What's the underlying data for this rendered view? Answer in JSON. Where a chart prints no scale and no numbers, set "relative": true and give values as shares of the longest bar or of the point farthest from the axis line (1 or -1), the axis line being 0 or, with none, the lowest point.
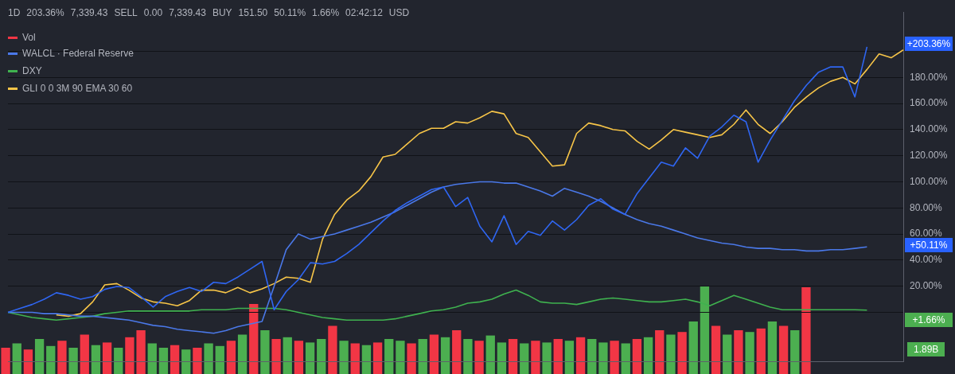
{
  "chart_data": [
    {
      "type": "line",
      "categories": [
        null,
        null,
        null,
        null,
        null,
        null,
        null,
        null,
        null,
        null,
        null,
        null,
        null,
        null,
        null,
        null,
        null,
        null,
        null,
        null,
        null,
        null,
        null,
        null,
        null,
        null,
        null,
        null,
        null,
        null,
        null,
        null,
        null,
        null,
        null,
        null,
        null,
        null,
        null,
        null,
        null,
        null,
        null,
        null,
        null,
        null,
        null,
        null,
        null,
        null,
        null,
        null,
        null,
        null,
        null,
        null,
        null,
        null,
        null,
        null,
        null,
        null,
        null,
        null,
        null,
        null,
        null,
        null,
        null,
        null,
        null,
        null,
        null,
        null,
        null
      ],
      "series": [
        {
          "color": "#2f66f2",
          "values": [
            0,
            3,
            6,
            10,
            15,
            13,
            10,
            12,
            17.6,
            19.8,
            19,
            12,
            4,
            12,
            16,
            19,
            16,
            23,
            22,
            27,
            33,
            39,
            2,
            16,
            25,
            38,
            37,
            39,
            45,
            52,
            61,
            70,
            78,
            84,
            89,
            94,
            96,
            81,
            88,
            66,
            54,
            74,
            52,
            62,
            59,
            70,
            63,
            71,
            82,
            87,
            79,
            75,
            91,
            103,
            115,
            112,
            126,
            118,
            135,
            142,
            151,
            146,
            115,
            132,
            147,
            162,
            174,
            184,
            188,
            188,
            165,
            203.36,
            null,
            null,
            null
          ]
        },
        {
          "name": "WALCL · Federal Reserve",
          "color": "#4a78e8",
          "values": [
            0,
            0,
            0,
            -1,
            -1,
            -2,
            -3,
            -3,
            -4,
            -5,
            -6,
            -8,
            -10,
            -11,
            -13,
            -14,
            -15,
            -16,
            -14,
            -11,
            -9,
            -7,
            20,
            48,
            60,
            56,
            58,
            60,
            63,
            66,
            69,
            73,
            77,
            82,
            87,
            92,
            96,
            98,
            99,
            100,
            100,
            99,
            99,
            96,
            93,
            89,
            95,
            92,
            89,
            85,
            80,
            75,
            71,
            68,
            66,
            63,
            60,
            57,
            55,
            53,
            52,
            50,
            49,
            49,
            48,
            48,
            47,
            47,
            48,
            48,
            49,
            50.11,
            null,
            null,
            null
          ]
        },
        {
          "name": "DXY",
          "color": "#3fb24f",
          "values": [
            0,
            -2,
            -4,
            -5,
            -6,
            -5,
            -4,
            -3,
            -1,
            0,
            1,
            1,
            1,
            1,
            1,
            1,
            2,
            2,
            2,
            3,
            3,
            3,
            3,
            2,
            0,
            -2,
            -4,
            -5,
            -6,
            -6,
            -6,
            -6,
            -5,
            -3,
            -1,
            1,
            2,
            4,
            7,
            8,
            10,
            14,
            17,
            13,
            8,
            7,
            7,
            6,
            8,
            10,
            11,
            10,
            9,
            8,
            8,
            9,
            10,
            8,
            5,
            9,
            13,
            10,
            7,
            4,
            2,
            2,
            2,
            2,
            2,
            2,
            2,
            1.66,
            null,
            null,
            null
          ]
        },
        {
          "name": "GLI 0 0 3M 90 EMA 30 60",
          "color": "#f7c548",
          "values": [
            null,
            null,
            null,
            null,
            -2,
            -3,
            -1,
            8,
            21,
            22,
            17,
            11,
            8,
            7,
            5,
            9,
            17,
            17,
            15,
            19,
            15,
            18,
            22,
            27,
            26,
            23,
            56,
            75,
            86,
            93,
            104,
            119,
            121,
            129,
            137,
            141,
            141,
            146,
            145,
            149,
            154,
            152,
            137,
            134,
            123,
            112,
            113,
            137,
            145,
            143,
            140,
            139,
            131,
            125,
            132,
            140,
            138,
            136,
            134,
            136,
            144,
            155,
            144,
            137,
            146,
            157,
            165,
            172,
            177,
            180,
            175,
            186,
            198,
            195,
            201
          ]
        }
      ],
      "ylim": [
        -38,
        230
      ],
      "yticks": [
        {
          "value": 0,
          "label": null
        },
        {
          "value": 20,
          "label": "20.00%"
        },
        {
          "value": 40,
          "label": "40.00%"
        },
        {
          "value": 60,
          "label": "60.00%"
        },
        {
          "value": 80,
          "label": "80.00%"
        },
        {
          "value": 100,
          "label": "100.00%"
        },
        {
          "value": 120,
          "label": "120.00%"
        },
        {
          "value": 140,
          "label": "140.00%"
        },
        {
          "value": 160,
          "label": "160.00%"
        },
        {
          "value": 180,
          "label": "180.00%"
        },
        {
          "value": 200,
          "label": null
        }
      ],
      "grid": "y",
      "legend": "top left",
      "tick_labels": "y",
      "marker": "none",
      "line_style": "solid",
      "annotations": [
        "+203.36%",
        "+50.11%",
        "+1.66%",
        "1D",
        "203.36%",
        "7,339.43",
        "SELL",
        "0.00",
        "7,339.43",
        "BUY",
        "151.50",
        "50.11%",
        "1.66%",
        "02:42:12",
        "USD"
      ]
    },
    {
      "type": "bar",
      "relative": true,
      "categories": [
        null,
        null,
        null,
        null,
        null,
        null,
        null,
        null,
        null,
        null,
        null,
        null,
        null,
        null,
        null,
        null,
        null,
        null,
        null,
        null,
        null,
        null,
        null,
        null,
        null,
        null,
        null,
        null,
        null,
        null,
        null,
        null,
        null,
        null,
        null,
        null,
        null,
        null,
        null,
        null,
        null,
        null,
        null,
        null,
        null,
        null,
        null,
        null,
        null,
        null,
        null,
        null,
        null,
        null,
        null,
        null,
        null,
        null,
        null,
        null,
        null,
        null,
        null,
        null,
        null,
        null,
        null,
        null,
        null,
        null,
        null,
        null
      ],
      "series": [
        {
          "name": "Vol",
          "colors": [
            "#f23645",
            "#4caf50",
            "#f23645",
            "#4caf50",
            "#4caf50",
            "#f23645",
            "#4caf50",
            "#f23645",
            "#4caf50",
            "#f23645",
            "#4caf50",
            "#f23645",
            "#f23645",
            "#4caf50",
            "#4caf50",
            "#f23645",
            "#4caf50",
            "#f23645",
            "#4caf50",
            "#4caf50",
            "#f23645",
            "#4caf50",
            "#f23645",
            "#4caf50",
            "#f23645",
            "#4caf50",
            "#f23645",
            "#4caf50",
            "#4caf50",
            "#f23645",
            "#4caf50",
            "#f23645",
            "#4caf50",
            "#f23645",
            "#4caf50",
            "#4caf50",
            "#f23645",
            "#4caf50",
            "#f23645",
            "#4caf50",
            "#f23645",
            "#4caf50",
            "#f23645",
            "#4caf50",
            "#4caf50",
            "#f23645",
            "#4caf50",
            "#f23645",
            "#4caf50",
            "#f23645",
            "#4caf50",
            "#f23645",
            "#4caf50",
            "#4caf50",
            "#f23645",
            "#4caf50",
            "#f23645",
            "#4caf50",
            "#f23645",
            "#4caf50",
            "#f23645",
            "#4caf50",
            "#4caf50",
            "#f23645",
            "#4caf50",
            "#f23645",
            "#4caf50",
            "#f23645",
            "#4caf50",
            "#f23645",
            "#4caf50",
            "#f23645"
          ],
          "values": [
            0.3,
            0.35,
            0.28,
            0.4,
            0.32,
            0.38,
            0.3,
            0.45,
            0.33,
            0.36,
            0.3,
            0.42,
            0.5,
            0.35,
            0.3,
            0.33,
            0.28,
            0.3,
            0.35,
            0.32,
            0.38,
            0.45,
            0.8,
            0.5,
            0.4,
            0.42,
            0.38,
            0.36,
            0.4,
            0.55,
            0.38,
            0.35,
            0.33,
            0.36,
            0.4,
            0.38,
            0.35,
            0.4,
            0.45,
            0.42,
            0.5,
            0.4,
            0.38,
            0.44,
            0.36,
            0.4,
            0.35,
            0.38,
            0.36,
            0.4,
            0.38,
            0.42,
            0.4,
            0.36,
            0.38,
            0.35,
            0.4,
            0.42,
            0.5,
            0.45,
            0.48,
            0.6,
            1,
            0.55,
            0.45,
            0.5,
            0.48,
            0.52,
            0.6,
            0.55,
            0.5,
            0.99
          ]
        }
      ],
      "legend": "top left",
      "annotations": [
        "1.89B"
      ]
    }
  ]
}
